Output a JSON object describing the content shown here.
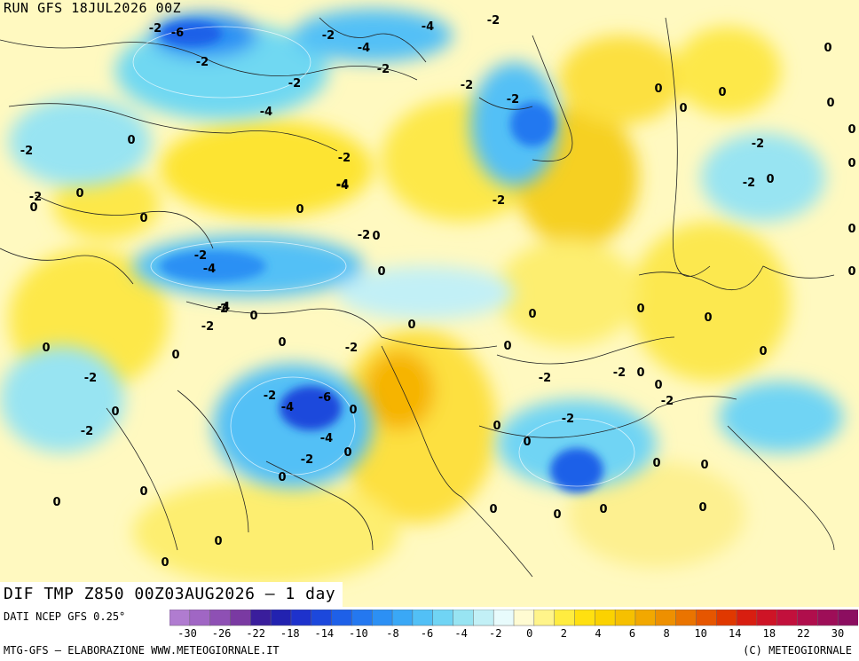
{
  "header": {
    "run_title": "RUN GFS 18JUL2026 00Z"
  },
  "map": {
    "bottom_title": "DIF TMP Z850 00Z03AUG2026 – 1 day",
    "contour_labels": [
      "-2",
      "-6",
      "-4",
      "-2",
      "-2",
      "-2",
      "-4",
      "-4",
      "-2",
      "-2",
      "-2",
      "0",
      "0",
      "-2",
      "0",
      "-2",
      "-4",
      "0",
      "-2",
      "-4",
      "0",
      "0",
      "-2",
      "0",
      "-2",
      "0",
      "0",
      "0",
      "-2",
      "0",
      "0",
      "0",
      "-4",
      "-2",
      "0",
      "-2",
      "0",
      "0",
      "0",
      "-2",
      "0",
      "-2",
      "0",
      "0",
      "-2",
      "-4",
      "-2",
      "-2",
      "-6",
      "0",
      "0",
      "0",
      "-4",
      "-2",
      "0",
      "-2",
      "-4",
      "-2",
      "0",
      "0",
      "0",
      "-2",
      "0",
      "0",
      "-2",
      "-2",
      "0",
      "0",
      "0",
      "0",
      "0",
      "0",
      "0",
      "0",
      "0",
      "0",
      "-2",
      "0",
      "0",
      "0",
      "0",
      "0",
      "0"
    ]
  },
  "footer": {
    "data_source": "DATI NCEP GFS 0.25°",
    "credits_left": "MTG-GFS – ELABORAZIONE WWW.METEOGIORNALE.IT",
    "credits_right": "(C) METEOGIORNALE"
  },
  "legend": {
    "colors": [
      "#b07cd0",
      "#a066c4",
      "#8e50b4",
      "#7a3aa2",
      "#3a1e9c",
      "#2222b0",
      "#1e32cc",
      "#1c48dc",
      "#1e60e8",
      "#2478f0",
      "#2c90f4",
      "#3aa8f6",
      "#52c0f6",
      "#70d4f4",
      "#98e4f2",
      "#c2f0f6",
      "#e8fbfc",
      "#fffbd2",
      "#fff48a",
      "#ffec40",
      "#ffe010",
      "#fbd200",
      "#f6c000",
      "#f2a800",
      "#ee9000",
      "#ea7400",
      "#e65600",
      "#e03800",
      "#d81e10",
      "#ce1426",
      "#c2103c",
      "#b00e4c",
      "#9e0e58",
      "#8c0e60"
    ],
    "tick_labels": [
      "-30",
      "-26",
      "-22",
      "-18",
      "-14",
      "-10",
      "-8",
      "-6",
      "-4",
      "-2",
      "0",
      "2",
      "4",
      "6",
      "8",
      "10",
      "14",
      "18",
      "22",
      "30"
    ]
  }
}
